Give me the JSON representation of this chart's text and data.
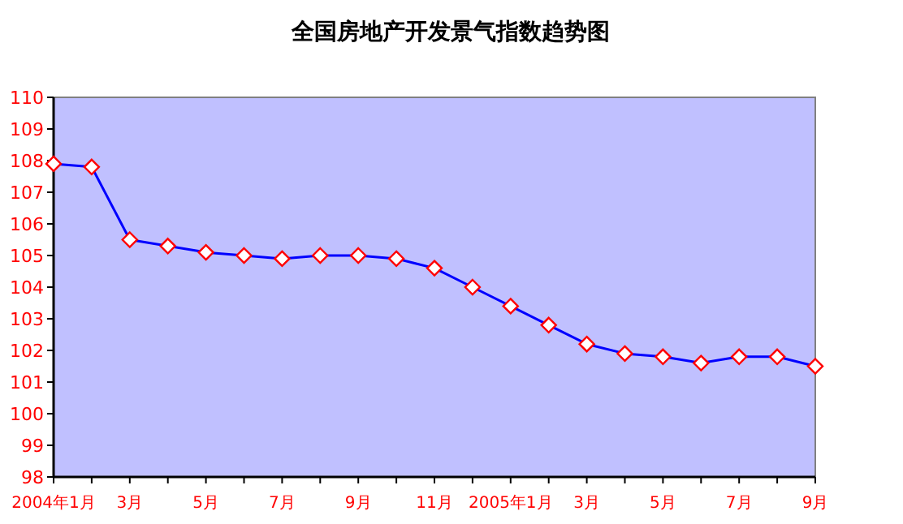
{
  "chart_data": {
    "type": "line",
    "title": "全国房地产开发景气指数趋势图",
    "categories": [
      "2004年1月",
      null,
      "3月",
      null,
      "5月",
      null,
      "7月",
      null,
      "9月",
      null,
      "11月",
      null,
      "2005年1月",
      null,
      "3月",
      null,
      "5月",
      null,
      "7月",
      null,
      "9月"
    ],
    "series": [
      {
        "color": "#0000ff",
        "values": [
          107.9,
          107.8,
          105.5,
          105.3,
          105.1,
          105.0,
          104.9,
          105.0,
          105.0,
          104.9,
          104.6,
          104.0,
          103.4,
          102.8,
          102.2,
          101.9,
          101.8,
          101.6,
          101.8,
          101.8,
          101.5
        ]
      }
    ],
    "ylim": [
      98,
      110
    ],
    "yticks": [
      98,
      99,
      100,
      101,
      102,
      103,
      104,
      105,
      106,
      107,
      108,
      109,
      110
    ],
    "marker": "diamond",
    "grid": false
  }
}
